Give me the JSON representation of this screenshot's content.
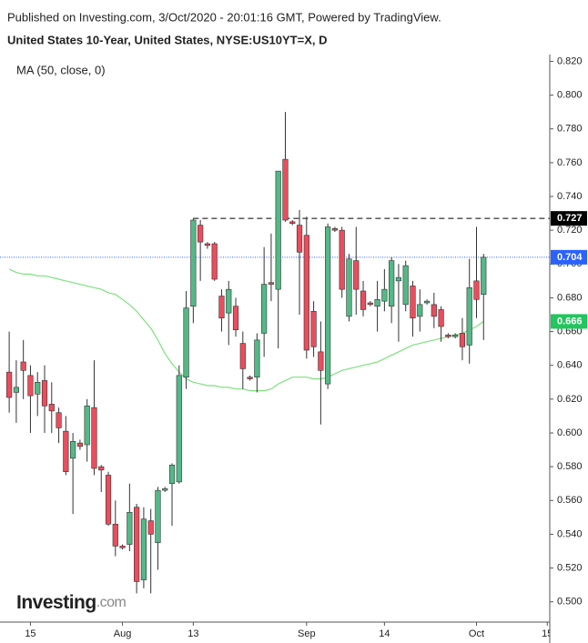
{
  "chart_data": {
    "type": "candlestick",
    "subtitle": "Published on Investing.com, 3/Oct/2020 - 20:01:16 GMT, Powered by TradingView.",
    "title": "United States 10-Year, United States, NYSE:US10YT=X, D",
    "indicator": {
      "name": "MA (50, close, 0)",
      "color": "#7ee07e",
      "values": [
        0.697,
        0.695,
        0.694,
        0.694,
        0.693,
        0.693,
        0.692,
        0.691,
        0.69,
        0.689,
        0.688,
        0.687,
        0.686,
        0.685,
        0.683,
        0.682,
        0.679,
        0.676,
        0.672,
        0.667,
        0.662,
        0.655,
        0.647,
        0.641,
        0.636,
        0.632,
        0.63,
        0.629,
        0.628,
        0.628,
        0.627,
        0.627,
        0.626,
        0.626,
        0.625,
        0.625,
        0.625,
        0.626,
        0.629,
        0.631,
        0.633,
        0.633,
        0.633,
        0.632,
        0.632,
        0.633,
        0.635,
        0.637,
        0.638,
        0.639,
        0.64,
        0.641,
        0.642,
        0.644,
        0.646,
        0.648,
        0.65,
        0.652,
        0.653,
        0.654,
        0.655,
        0.656,
        0.657,
        0.658,
        0.659,
        0.661,
        0.663,
        0.666
      ]
    },
    "open": [
      0.636,
      0.624,
      0.642,
      0.634,
      0.623,
      0.631,
      0.617,
      0.612,
      0.601,
      0.585,
      0.594,
      0.593,
      0.615,
      0.58,
      0.575,
      0.546,
      0.533,
      0.534,
      0.556,
      0.513,
      0.548,
      0.535,
      0.566,
      0.57,
      0.571,
      0.633,
      0.675,
      0.723,
      0.712,
      0.712,
      0.681,
      0.671,
      0.675,
      0.653,
      0.633,
      0.633,
      0.659,
      0.689,
      0.685,
      0.762,
      0.725,
      0.723,
      0.717,
      0.672,
      0.648,
      0.629,
      0.721,
      0.72,
      0.669,
      0.702,
      0.684,
      0.677,
      0.675,
      0.678,
      0.675,
      0.69,
      0.676,
      0.687,
      0.669,
      0.677,
      0.676,
      0.673,
      0.658,
      0.657,
      0.659,
      0.652,
      0.69,
      0.682
    ],
    "high": [
      0.66,
      0.643,
      0.655,
      0.64,
      0.636,
      0.64,
      0.63,
      0.615,
      0.61,
      0.6,
      0.596,
      0.62,
      0.643,
      0.581,
      0.577,
      0.56,
      0.534,
      0.57,
      0.558,
      0.556,
      0.555,
      0.568,
      0.568,
      0.582,
      0.64,
      0.684,
      0.727,
      0.726,
      0.713,
      0.713,
      0.685,
      0.69,
      0.68,
      0.66,
      0.634,
      0.659,
      0.71,
      0.718,
      0.755,
      0.79,
      0.726,
      0.732,
      0.728,
      0.678,
      0.666,
      0.724,
      0.722,
      0.722,
      0.706,
      0.722,
      0.69,
      0.678,
      0.69,
      0.697,
      0.704,
      0.7,
      0.702,
      0.69,
      0.685,
      0.679,
      0.683,
      0.675,
      0.659,
      0.659,
      0.668,
      0.703,
      0.722,
      0.706
    ],
    "low": [
      0.612,
      0.606,
      0.62,
      0.6,
      0.61,
      0.6,
      0.6,
      0.594,
      0.575,
      0.552,
      0.59,
      0.583,
      0.575,
      0.565,
      0.545,
      0.527,
      0.531,
      0.53,
      0.505,
      0.508,
      0.505,
      0.519,
      0.565,
      0.545,
      0.57,
      0.626,
      0.665,
      0.69,
      0.709,
      0.69,
      0.66,
      0.652,
      0.657,
      0.626,
      0.631,
      0.624,
      0.645,
      0.678,
      0.65,
      0.725,
      0.723,
      0.67,
      0.644,
      0.645,
      0.605,
      0.626,
      0.719,
      0.68,
      0.666,
      0.67,
      0.669,
      0.675,
      0.66,
      0.672,
      0.665,
      0.654,
      0.672,
      0.657,
      0.66,
      0.676,
      0.662,
      0.654,
      0.656,
      0.656,
      0.643,
      0.641,
      0.668,
      0.655
    ],
    "close": [
      0.621,
      0.627,
      0.637,
      0.622,
      0.63,
      0.616,
      0.613,
      0.603,
      0.577,
      0.595,
      0.592,
      0.616,
      0.579,
      0.578,
      0.546,
      0.533,
      0.532,
      0.553,
      0.512,
      0.549,
      0.54,
      0.566,
      0.567,
      0.581,
      0.634,
      0.674,
      0.726,
      0.713,
      0.711,
      0.691,
      0.668,
      0.685,
      0.661,
      0.638,
      0.632,
      0.655,
      0.688,
      0.688,
      0.755,
      0.726,
      0.724,
      0.707,
      0.649,
      0.651,
      0.637,
      0.722,
      0.72,
      0.685,
      0.703,
      0.685,
      0.673,
      0.676,
      0.679,
      0.685,
      0.702,
      0.692,
      0.699,
      0.668,
      0.676,
      0.678,
      0.669,
      0.663,
      0.657,
      0.658,
      0.651,
      0.686,
      0.679,
      0.704
    ],
    "up_color": "#53b987",
    "down_color": "#eb4d5c",
    "xlim": [
      -1.3,
      76.35
    ],
    "xticks": [
      {
        "value": 3,
        "label": "15"
      },
      {
        "value": 16,
        "label": "Aug"
      },
      {
        "value": 26,
        "label": "13"
      },
      {
        "value": 42,
        "label": "Sep"
      },
      {
        "value": 53,
        "label": "14"
      },
      {
        "value": 66,
        "label": "Oct"
      },
      {
        "value": 76,
        "label": "15"
      }
    ],
    "ylim": [
      0.488,
      0.824
    ],
    "yticks": [
      {
        "value": 0.5,
        "label": "0.500"
      },
      {
        "value": 0.52,
        "label": "0.520"
      },
      {
        "value": 0.54,
        "label": "0.540"
      },
      {
        "value": 0.56,
        "label": "0.560"
      },
      {
        "value": 0.58,
        "label": "0.580"
      },
      {
        "value": 0.6,
        "label": "0.600"
      },
      {
        "value": 0.62,
        "label": "0.620"
      },
      {
        "value": 0.64,
        "label": "0.640"
      },
      {
        "value": 0.66,
        "label": "0.660"
      },
      {
        "value": 0.68,
        "label": "0.680"
      },
      {
        "value": 0.7,
        "label": "0.700"
      },
      {
        "value": 0.72,
        "label": "0.720"
      },
      {
        "value": 0.74,
        "label": "0.740"
      },
      {
        "value": 0.76,
        "label": "0.760"
      },
      {
        "value": 0.78,
        "label": "0.780"
      },
      {
        "value": 0.8,
        "label": "0.800"
      },
      {
        "value": 0.82,
        "label": "0.820"
      }
    ],
    "resistance": {
      "value": 0.727,
      "start": 26,
      "color": "#000000"
    },
    "last_price": {
      "value": 0.704,
      "color": "#2962ff"
    },
    "ma_tag": {
      "value": 0.666,
      "color": "#22c55e"
    },
    "logo": {
      "name": "Investing",
      "suffix": ".com"
    }
  }
}
